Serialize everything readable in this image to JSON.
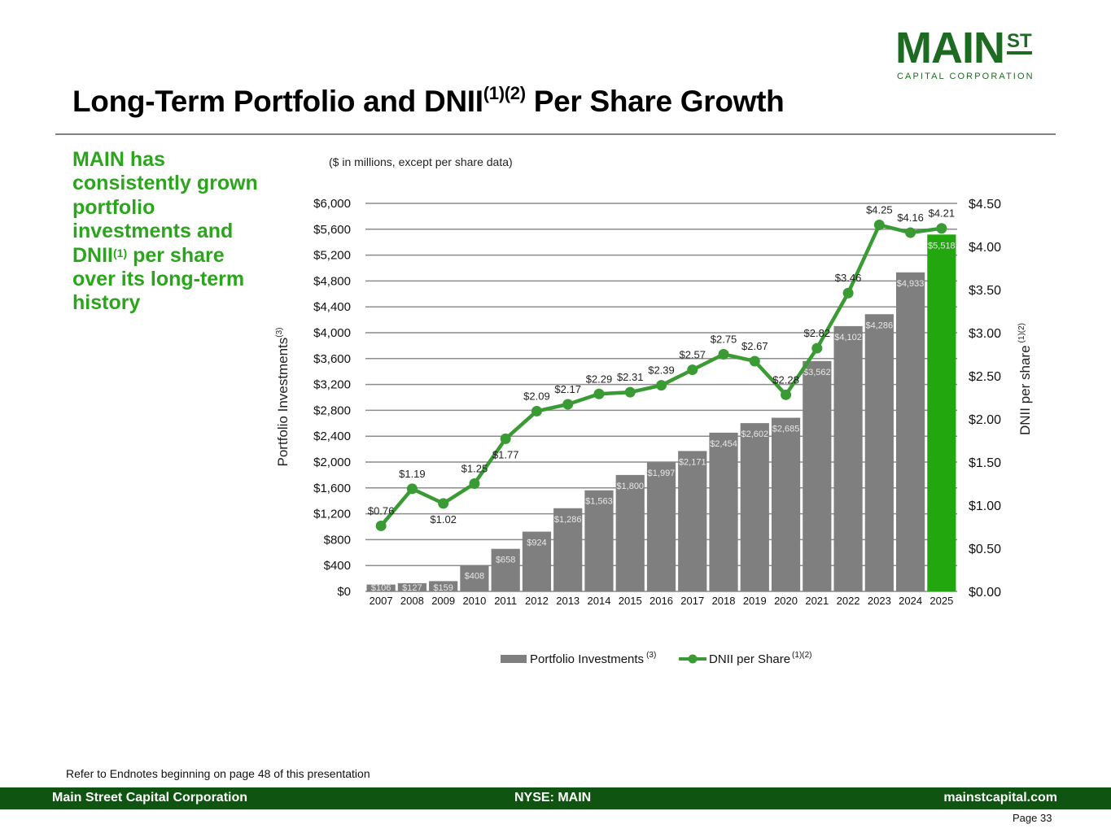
{
  "logo": {
    "main": "MAIN",
    "superscript": "ST",
    "sub": "CAPITAL CORPORATION",
    "color": "#1d6b23"
  },
  "title": {
    "text": "Long-Term Portfolio and DNII",
    "sup": "(1)(2)",
    "text_after": " Per Share Growth"
  },
  "sidebar": {
    "before_sup": "MAIN has consistently grown portfolio investments and DNII",
    "sup": "(1)",
    "after_sup": " per share over its long-term history",
    "color": "#2aa51c"
  },
  "chart_subtitle": "($ in millions, except per share data)",
  "chart_data": {
    "type": "bar",
    "combo": "bar+line (dual axis)",
    "categories": [
      "2007",
      "2008",
      "2009",
      "2010",
      "2011",
      "2012",
      "2013",
      "2014",
      "2015",
      "2016",
      "2017",
      "2018",
      "2019",
      "2020",
      "2021",
      "2022",
      "2023",
      "2024",
      "2025"
    ],
    "series": [
      {
        "name": "Portfolio Investments",
        "name_sup": "(3)",
        "type": "bar",
        "axis": "left",
        "values": [
          106,
          127,
          159,
          408,
          658,
          924,
          1286,
          1563,
          1800,
          1997,
          2171,
          2454,
          2602,
          2685,
          3562,
          4102,
          4286,
          4933,
          5518
        ],
        "labels": [
          "$106",
          "$127",
          "$159",
          "$408",
          "$658",
          "$924",
          "$1,286",
          "$1,563",
          "$1,800",
          "$1,997",
          "$2,171",
          "$2,454",
          "$2,602",
          "$2,685",
          "$3,562",
          "$4,102",
          "$4,286",
          "$4,933",
          "$5,518"
        ],
        "color": "#7f7f7f",
        "highlight_color": "#22a80e",
        "highlight_index": 18
      },
      {
        "name": "DNII per Share",
        "name_sup": "(1)(2)",
        "type": "line",
        "axis": "right",
        "values": [
          0.76,
          1.19,
          1.02,
          1.25,
          1.77,
          2.09,
          2.17,
          2.29,
          2.31,
          2.39,
          2.57,
          2.75,
          2.67,
          2.28,
          2.82,
          3.46,
          4.25,
          4.16,
          4.21
        ],
        "labels": [
          "$0.76",
          "$1.19",
          "$1.02",
          "$1.25",
          "$1.77",
          "$2.09",
          "$2.17",
          "$2.29",
          "$2.31",
          "$2.39",
          "$2.57",
          "$2.75",
          "$2.67",
          "$2.28",
          "$2.82",
          "$3.46",
          "$4.25",
          "$4.16",
          "$4.21"
        ],
        "label_pos": [
          "above",
          "above",
          "below",
          "above",
          "below",
          "above",
          "above",
          "above",
          "above",
          "above",
          "above",
          "above",
          "above",
          "above",
          "above",
          "above",
          "above",
          "above",
          "above"
        ],
        "color": "#3a9a34"
      }
    ],
    "ylabel": "Portfolio Investments",
    "ylabel_sup": "(3)",
    "y2label": "DNII per share",
    "y2label_sup": "(1)(2)",
    "ylim": [
      0,
      6000
    ],
    "y2lim": [
      0,
      4.5
    ],
    "yticks": [
      "$0",
      "$400",
      "$800",
      "$1,200",
      "$1,600",
      "$2,000",
      "$2,400",
      "$2,800",
      "$3,200",
      "$3,600",
      "$4,000",
      "$4,400",
      "$4,800",
      "$5,200",
      "$5,600",
      "$6,000"
    ],
    "y2ticks": [
      "$0.00",
      "$0.50",
      "$1.00",
      "$1.50",
      "$2.00",
      "$2.50",
      "$3.00",
      "$3.50",
      "$4.00",
      "$4.50"
    ],
    "grid": true,
    "legend": "bottom-center"
  },
  "endnote": "Refer to Endnotes beginning on page 48 of this presentation",
  "footer": {
    "left": "Main Street Capital Corporation",
    "center": "NYSE: MAIN",
    "right": "mainstcapital.com",
    "color": "#0f5410"
  },
  "page": "Page  33"
}
